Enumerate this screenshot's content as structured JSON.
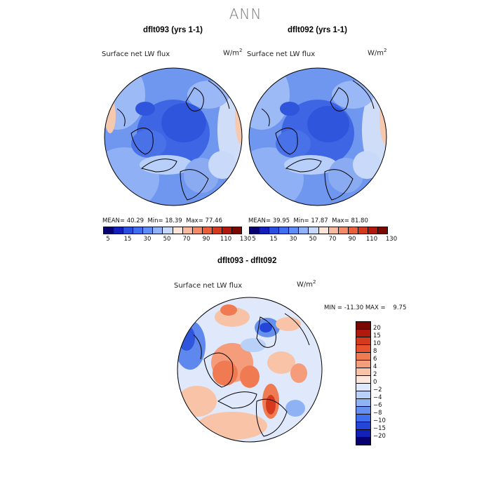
{
  "title": "ANN",
  "panels": [
    {
      "case": "dflt093 (yrs 1-1)",
      "field": "Surface net LW flux",
      "units_base": "W/m",
      "units_exp": "2",
      "mean_label": "MEAN=",
      "mean": "40.29",
      "min_label": "Min=",
      "min": "18.39",
      "max_label": "Max=",
      "max": "77.46"
    },
    {
      "case": "dflt092 (yrs 1-1)",
      "field": "Surface net LW flux",
      "units_base": "W/m",
      "units_exp": "2",
      "mean_label": "MEAN=",
      "mean": "39.95",
      "min_label": "Min=",
      "min": "17.87",
      "max_label": "Max=",
      "max": "81.80"
    }
  ],
  "top_colorbar": {
    "colors": [
      "#08006e",
      "#1020b8",
      "#2a4ee0",
      "#3f6ef0",
      "#5e8ef5",
      "#8fb2f8",
      "#c4d8fb",
      "#fbe3d6",
      "#f7b89c",
      "#f28c68",
      "#e8603c",
      "#d63a1e",
      "#b01a0c",
      "#7a0700"
    ],
    "ticks": [
      "5",
      "15",
      "30",
      "50",
      "70",
      "90",
      "110",
      "130"
    ]
  },
  "diff_panel": {
    "title": "dflt093 - dflt092",
    "field": "Surface net LW flux",
    "units_base": "W/m",
    "units_exp": "2",
    "stats_text": "MIN = -11.30 MAX =    9.75"
  },
  "diff_colorbar": {
    "colors": [
      "#7a0700",
      "#b01a0c",
      "#d63a1e",
      "#e8532e",
      "#f07a52",
      "#f59c7a",
      "#f9c3a8",
      "#fde7dc",
      "#dfe9fb",
      "#b9d0f8",
      "#8fb2f5",
      "#6690f0",
      "#3f6ef0",
      "#2446d8",
      "#1020b8",
      "#08006e"
    ],
    "ticks": [
      "20",
      "15",
      "10",
      "8",
      "6",
      "4",
      "2",
      "0",
      "−2",
      "−4",
      "−6",
      "−8",
      "−10",
      "−15",
      "−20"
    ]
  }
}
